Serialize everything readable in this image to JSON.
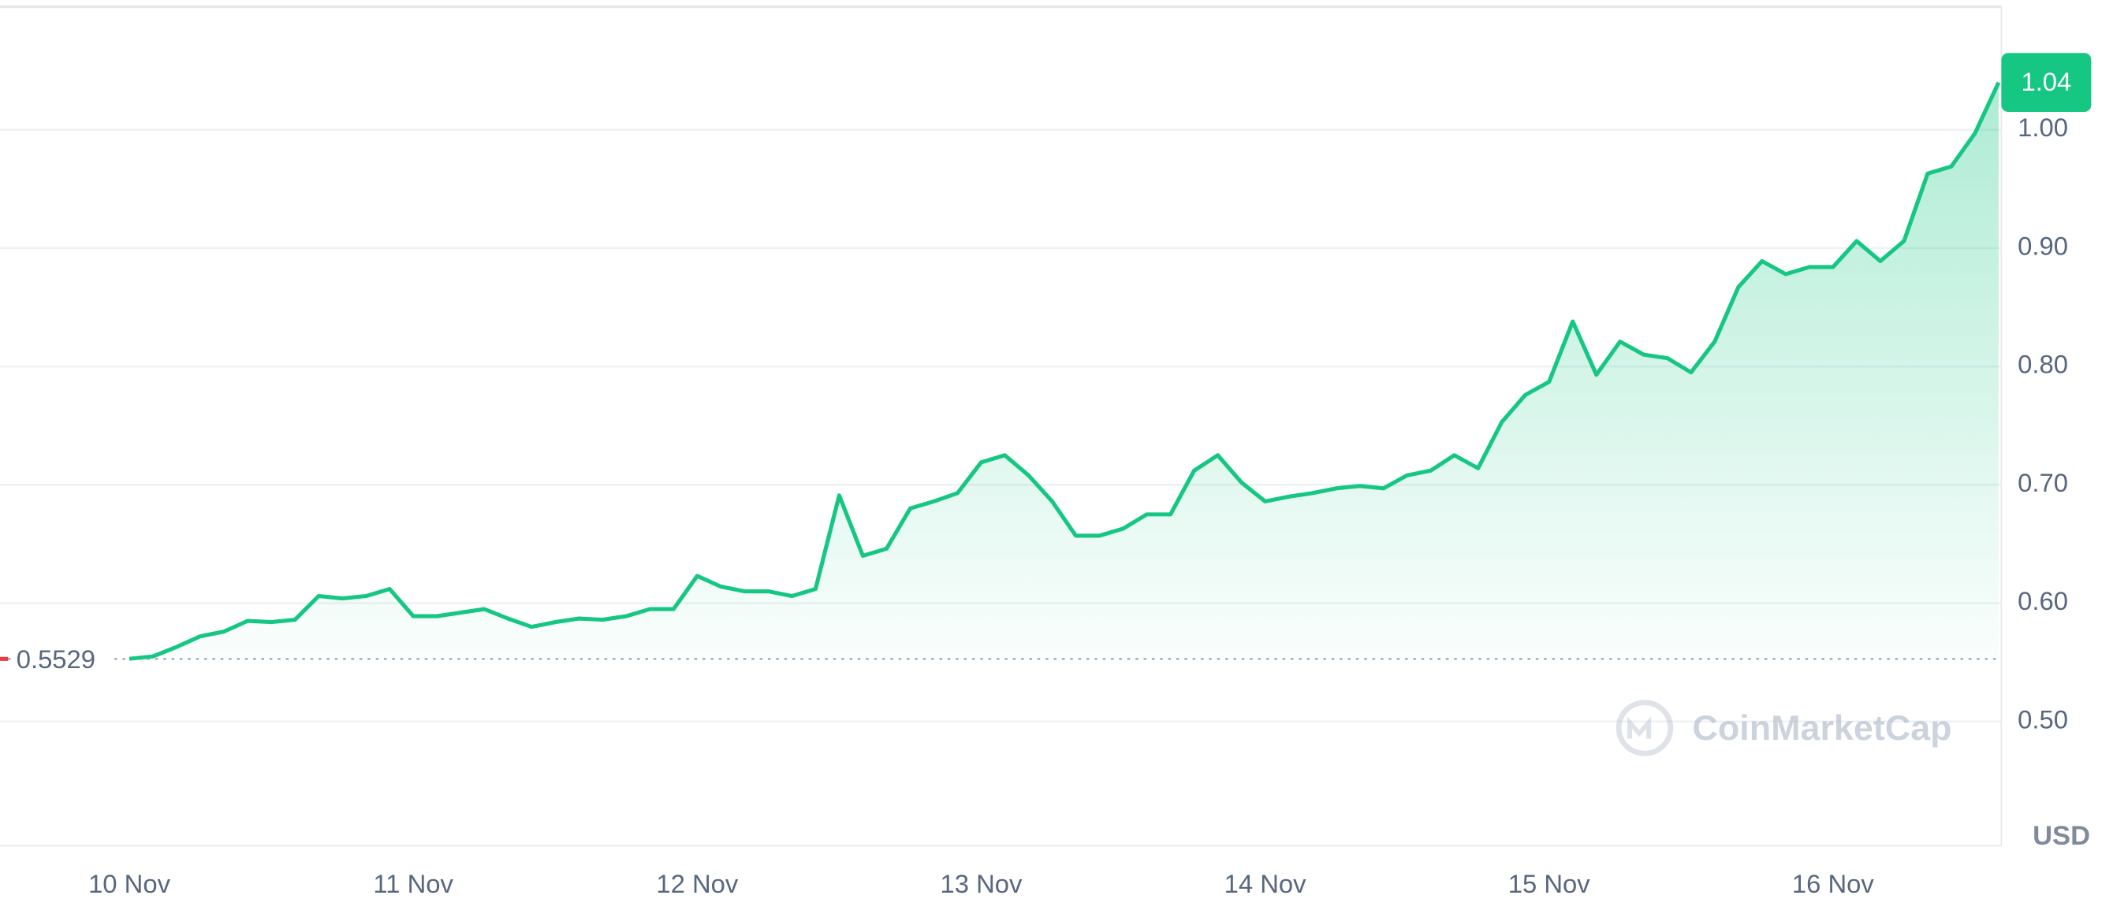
{
  "chart_data": {
    "type": "line",
    "color": "#16c784",
    "categories": [
      "10 Nov",
      null,
      null,
      null,
      null,
      null,
      null,
      null,
      null,
      null,
      null,
      null,
      "11 Nov",
      null,
      null,
      null,
      null,
      null,
      null,
      null,
      null,
      null,
      null,
      null,
      "12 Nov",
      null,
      null,
      null,
      null,
      null,
      null,
      null,
      null,
      null,
      null,
      null,
      "13 Nov",
      null,
      null,
      null,
      null,
      null,
      null,
      null,
      null,
      null,
      null,
      null,
      "14 Nov",
      null,
      null,
      null,
      null,
      null,
      null,
      null,
      null,
      null,
      null,
      null,
      "15 Nov",
      null,
      null,
      null,
      null,
      null,
      null,
      null,
      null,
      null,
      null,
      null,
      "16 Nov",
      null,
      null,
      null,
      null,
      null,
      null,
      null
    ],
    "values": [
      0.553,
      0.555,
      0.563,
      0.572,
      0.576,
      0.585,
      0.584,
      0.586,
      0.606,
      0.604,
      0.606,
      0.612,
      0.589,
      0.589,
      0.592,
      0.595,
      0.587,
      0.58,
      0.584,
      0.587,
      0.586,
      0.589,
      0.595,
      0.595,
      0.623,
      0.614,
      0.61,
      0.61,
      0.606,
      0.612,
      0.691,
      0.64,
      0.646,
      0.68,
      0.686,
      0.693,
      0.719,
      0.725,
      0.708,
      0.686,
      0.657,
      0.657,
      0.663,
      0.675,
      0.675,
      0.712,
      0.725,
      0.702,
      0.686,
      0.69,
      0.693,
      0.697,
      0.699,
      0.697,
      0.708,
      0.712,
      0.725,
      0.714,
      0.753,
      0.776,
      0.787,
      0.838,
      0.793,
      0.821,
      0.81,
      0.807,
      0.795,
      0.821,
      0.867,
      0.889,
      0.878,
      0.884,
      0.884,
      0.906,
      0.889,
      0.906,
      0.963,
      0.969,
      0.997,
      1.04
    ],
    "ylim": [
      0.395,
      1.104
    ],
    "yticks": [
      {
        "value": 0.5,
        "label": "0.50"
      },
      {
        "value": 0.6,
        "label": "0.60"
      },
      {
        "value": 0.7,
        "label": "0.70"
      },
      {
        "value": 0.8,
        "label": "0.80"
      },
      {
        "value": 0.9,
        "label": "0.90"
      },
      {
        "value": 1.0,
        "label": "1.00"
      }
    ],
    "grid": true,
    "reference_line": 0.5529,
    "current_price": 1.04,
    "unit_label": "USD",
    "watermark": "CoinMarketCap"
  }
}
